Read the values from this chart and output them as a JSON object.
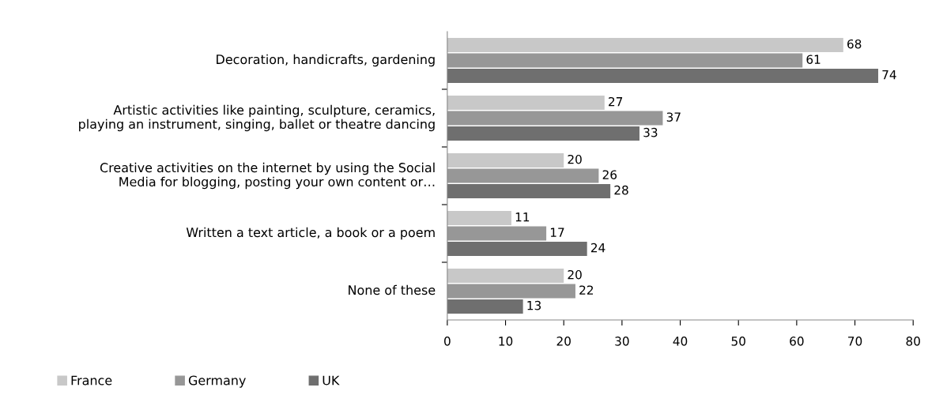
{
  "chart_data": {
    "type": "bar",
    "orientation": "horizontal",
    "categories": [
      "Decoration, handicrafts, gardening",
      "Artistic activities like painting, sculpture, ceramics,\nplaying an instrument, singing, ballet or theatre dancing",
      "Creative activities on the internet by using the Social\nMedia for blogging, posting your own content or…",
      "Written a text article, a book or a poem",
      "None of these"
    ],
    "series": [
      {
        "name": "France",
        "color": "#c8c8c8",
        "values": [
          68,
          27,
          20,
          11,
          20
        ]
      },
      {
        "name": "Germany",
        "color": "#979797",
        "values": [
          61,
          37,
          26,
          17,
          22
        ]
      },
      {
        "name": "UK",
        "color": "#6f6f6f",
        "values": [
          74,
          33,
          28,
          24,
          13
        ]
      }
    ],
    "xlim": [
      0,
      80
    ],
    "xticks": [
      0,
      10,
      20,
      30,
      40,
      50,
      60,
      70,
      80
    ],
    "data_labels": true,
    "grid": false,
    "legend": "bottom left"
  }
}
